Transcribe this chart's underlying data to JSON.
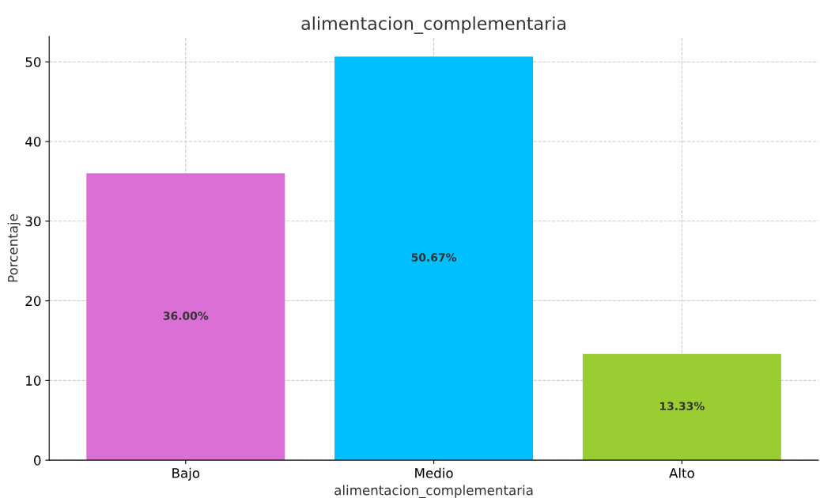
{
  "chart_data": {
    "type": "bar",
    "title": "alimentacion_complementaria",
    "xlabel": "alimentacion_complementaria",
    "ylabel": "Porcentaje",
    "categories": [
      "Bajo",
      "Medio",
      "Alto"
    ],
    "values": [
      36.0,
      50.67,
      13.33
    ],
    "colors": [
      "#da70d6",
      "#00bfff",
      "#9acd32"
    ],
    "value_labels": [
      "36.00%",
      "50.67%",
      "13.33%"
    ],
    "ylim": [
      0,
      53.2
    ],
    "yticks": [
      0,
      10,
      20,
      30,
      40,
      50
    ],
    "grid": true,
    "line_style": "dashed"
  }
}
